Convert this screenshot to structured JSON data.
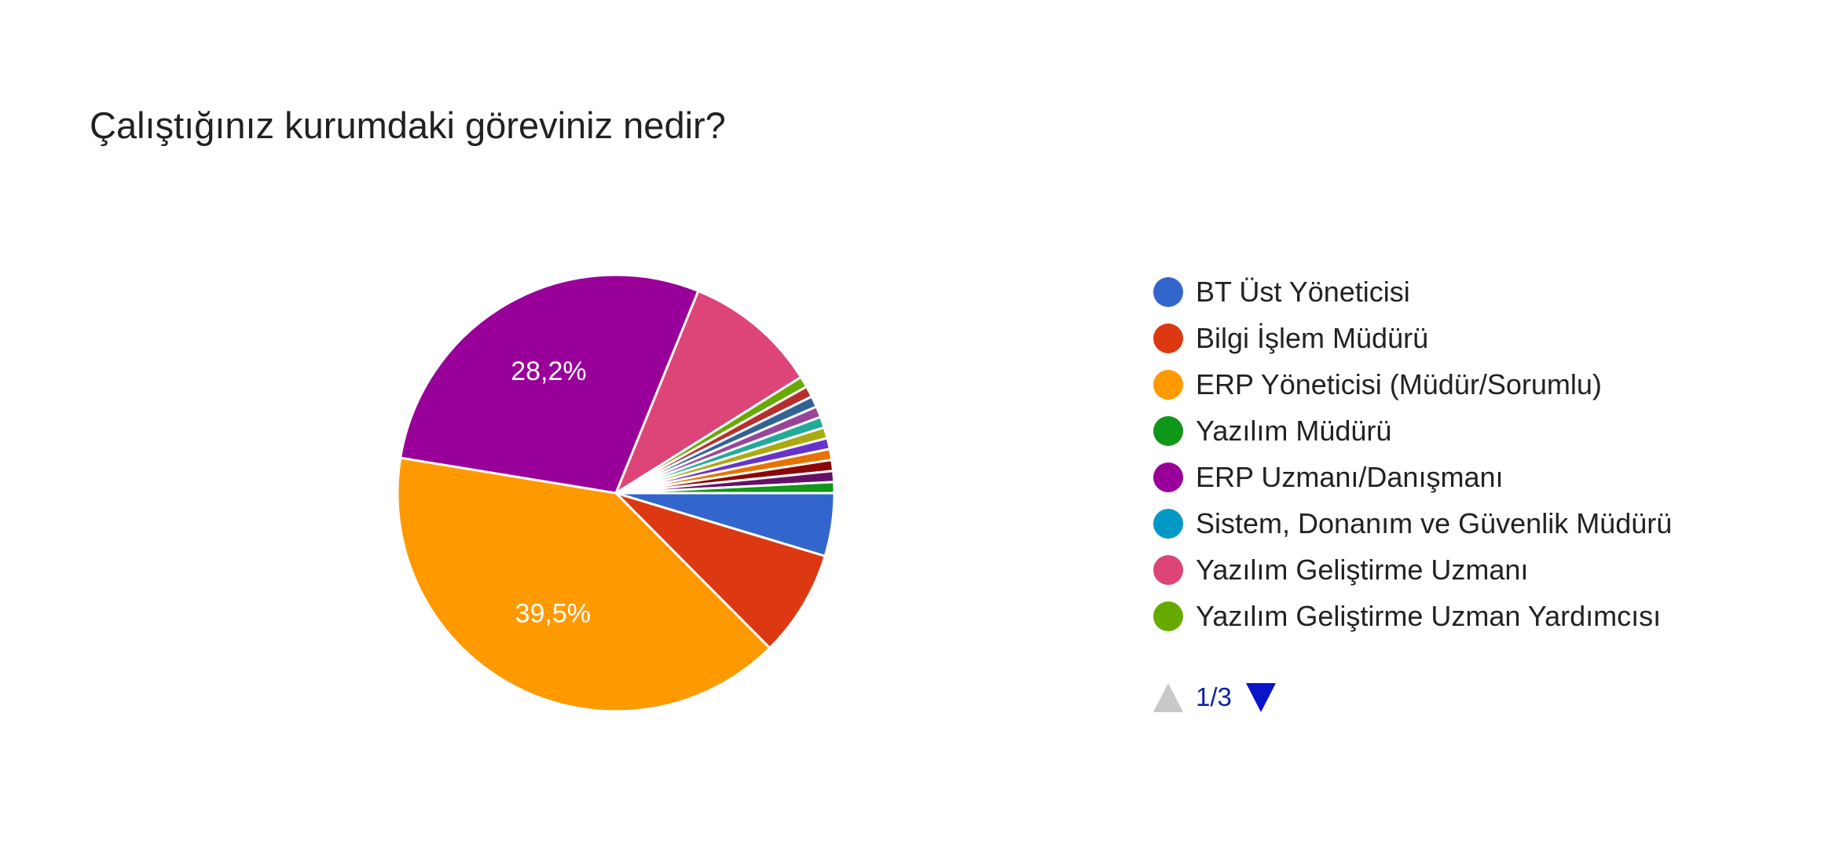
{
  "chart_data": {
    "type": "pie",
    "title": "Çalıştığınız kurumdaki göreviniz nedir?",
    "slices": [
      {
        "label": "BT Üst Yöneticisi",
        "value": 4.6,
        "color": "#3366cc"
      },
      {
        "label": "Bilgi İşlem Müdürü",
        "value": 7.8,
        "color": "#dc3912"
      },
      {
        "label": "ERP Yöneticisi (Müdür/Sorumlu)",
        "value": 39.5,
        "color": "#ff9900",
        "data_label": "39,5%"
      },
      {
        "label": "ERP Uzmanı/Danışmanı",
        "value": 28.2,
        "color": "#990099",
        "data_label": "28,2%"
      },
      {
        "label": "Yazılım Geliştirme Uzmanı",
        "value": 9.8,
        "color": "#dd4477"
      },
      {
        "label": "Yazılım Geliştirme Uzman Yardımcısı",
        "value": 0.8,
        "color": "#66aa00"
      },
      {
        "label": "",
        "value": 0.8,
        "color": "#b82e2e"
      },
      {
        "label": "",
        "value": 0.8,
        "color": "#316395"
      },
      {
        "label": "",
        "value": 0.8,
        "color": "#994499"
      },
      {
        "label": "",
        "value": 0.8,
        "color": "#22aa99"
      },
      {
        "label": "",
        "value": 0.8,
        "color": "#aaaa11"
      },
      {
        "label": "",
        "value": 0.8,
        "color": "#6633cc"
      },
      {
        "label": "",
        "value": 0.8,
        "color": "#e67300"
      },
      {
        "label": "",
        "value": 0.8,
        "color": "#8b0707"
      },
      {
        "label": "",
        "value": 0.8,
        "color": "#651067"
      },
      {
        "label": "Yazılım Müdürü",
        "value": 0.8,
        "color": "#109618"
      },
      {
        "label": "Sistem, Donanım ve Güvenlik Müdürü",
        "value": 0.0,
        "color": "#0099c6"
      }
    ],
    "legend": [
      {
        "label": "BT Üst Yöneticisi",
        "color": "#3366cc"
      },
      {
        "label": "Bilgi İşlem Müdürü",
        "color": "#dc3912"
      },
      {
        "label": "ERP Yöneticisi (Müdür/Sorumlu)",
        "color": "#ff9900"
      },
      {
        "label": "Yazılım Müdürü",
        "color": "#109618"
      },
      {
        "label": "ERP Uzmanı/Danışmanı",
        "color": "#990099"
      },
      {
        "label": "Sistem, Donanım ve Güvenlik Müdürü",
        "color": "#0099c6"
      },
      {
        "label": "Yazılım Geliştirme Uzmanı",
        "color": "#dd4477"
      },
      {
        "label": "Yazılım Geliştirme Uzman Yardımcısı",
        "color": "#66aa00"
      }
    ],
    "legend_position": "right",
    "pager": {
      "text": "1/3"
    }
  }
}
